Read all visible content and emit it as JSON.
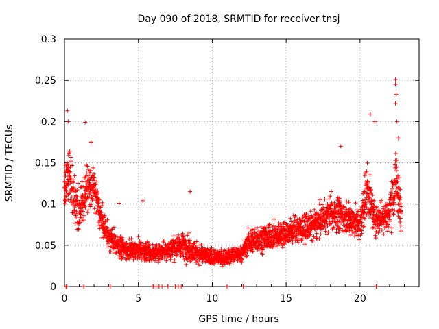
{
  "chart_data": {
    "type": "scatter",
    "title": "Day 090 of 2018, SRMTID for receiver tnsj",
    "xlabel": "GPS time / hours",
    "ylabel": "SRMTID / TECUs",
    "xlim": [
      0,
      24
    ],
    "ylim": [
      0,
      0.3
    ],
    "xticks": [
      0,
      5,
      10,
      15,
      20
    ],
    "xtick_labels": [
      "0",
      "5",
      "10",
      "15",
      "20"
    ],
    "yticks": [
      0,
      0.05,
      0.1,
      0.15,
      0.2,
      0.25,
      0.3
    ],
    "ytick_labels": [
      "0",
      "0.05",
      "0.1",
      "0.15",
      "0.2",
      "0.25",
      "0.3"
    ],
    "grid": true,
    "marker": "+",
    "color": "#ff0000",
    "series": [
      {
        "name": "SRMTID",
        "zero_points_x": [
          0.1,
          0.15,
          1.3,
          3.1,
          6.0,
          6.2,
          6.4,
          6.6,
          7.0,
          7.5,
          7.7,
          7.9,
          11.0,
          12.1,
          21.1
        ],
        "envelope": [
          {
            "x": 0.0,
            "center": 0.12,
            "spread": 0.05
          },
          {
            "x": 0.3,
            "center": 0.14,
            "spread": 0.06
          },
          {
            "x": 0.6,
            "center": 0.11,
            "spread": 0.04
          },
          {
            "x": 1.0,
            "center": 0.09,
            "spread": 0.04
          },
          {
            "x": 1.5,
            "center": 0.12,
            "spread": 0.04
          },
          {
            "x": 2.0,
            "center": 0.12,
            "spread": 0.04
          },
          {
            "x": 2.5,
            "center": 0.08,
            "spread": 0.03
          },
          {
            "x": 3.0,
            "center": 0.06,
            "spread": 0.025
          },
          {
            "x": 4.0,
            "center": 0.045,
            "spread": 0.02
          },
          {
            "x": 5.0,
            "center": 0.045,
            "spread": 0.02
          },
          {
            "x": 6.0,
            "center": 0.04,
            "spread": 0.015
          },
          {
            "x": 7.0,
            "center": 0.045,
            "spread": 0.02
          },
          {
            "x": 8.0,
            "center": 0.05,
            "spread": 0.025
          },
          {
            "x": 9.0,
            "center": 0.04,
            "spread": 0.02
          },
          {
            "x": 10.0,
            "center": 0.035,
            "spread": 0.015
          },
          {
            "x": 11.0,
            "center": 0.035,
            "spread": 0.015
          },
          {
            "x": 12.0,
            "center": 0.04,
            "spread": 0.015
          },
          {
            "x": 12.5,
            "center": 0.055,
            "spread": 0.025
          },
          {
            "x": 14.0,
            "center": 0.06,
            "spread": 0.025
          },
          {
            "x": 15.0,
            "center": 0.065,
            "spread": 0.025
          },
          {
            "x": 16.0,
            "center": 0.07,
            "spread": 0.03
          },
          {
            "x": 17.0,
            "center": 0.075,
            "spread": 0.03
          },
          {
            "x": 18.0,
            "center": 0.09,
            "spread": 0.035
          },
          {
            "x": 19.0,
            "center": 0.085,
            "spread": 0.03
          },
          {
            "x": 20.0,
            "center": 0.075,
            "spread": 0.03
          },
          {
            "x": 20.5,
            "center": 0.12,
            "spread": 0.05
          },
          {
            "x": 21.0,
            "center": 0.08,
            "spread": 0.03
          },
          {
            "x": 22.0,
            "center": 0.09,
            "spread": 0.035
          },
          {
            "x": 22.5,
            "center": 0.13,
            "spread": 0.07
          },
          {
            "x": 22.8,
            "center": 0.08,
            "spread": 0.03
          }
        ],
        "notable_points": [
          {
            "x": 0.2,
            "y": 0.213
          },
          {
            "x": 0.25,
            "y": 0.2
          },
          {
            "x": 1.4,
            "y": 0.199
          },
          {
            "x": 1.8,
            "y": 0.175
          },
          {
            "x": 18.7,
            "y": 0.17
          },
          {
            "x": 20.7,
            "y": 0.209
          },
          {
            "x": 21.0,
            "y": 0.2
          },
          {
            "x": 22.4,
            "y": 0.251
          },
          {
            "x": 22.4,
            "y": 0.245
          },
          {
            "x": 22.45,
            "y": 0.233
          },
          {
            "x": 22.4,
            "y": 0.222
          },
          {
            "x": 22.5,
            "y": 0.2
          },
          {
            "x": 22.6,
            "y": 0.18
          },
          {
            "x": 8.5,
            "y": 0.115
          },
          {
            "x": 5.3,
            "y": 0.104
          },
          {
            "x": 3.7,
            "y": 0.101
          }
        ]
      }
    ]
  }
}
